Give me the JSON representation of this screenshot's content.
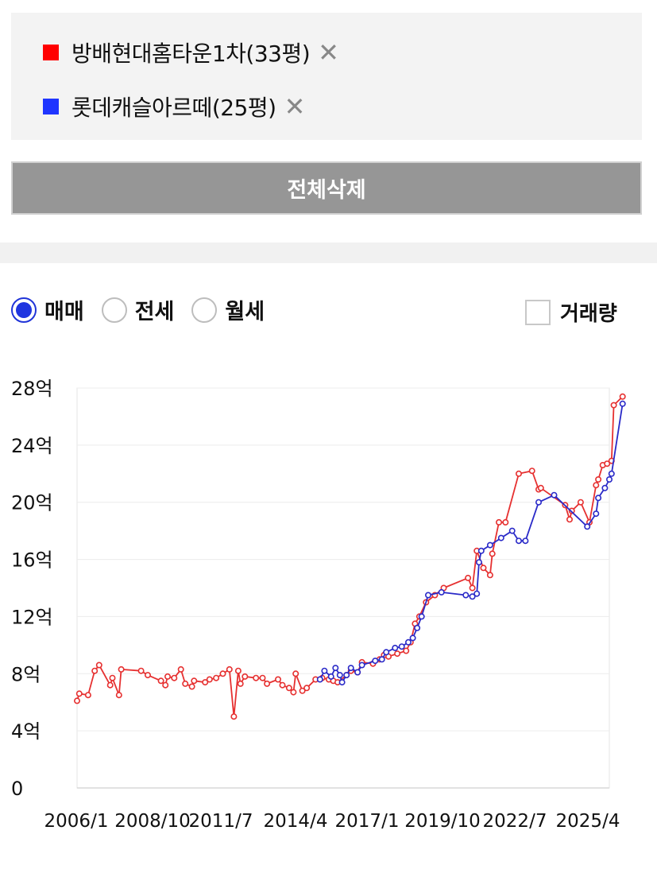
{
  "compare": {
    "items": [
      {
        "label": "방배현대홈타운1차(33평)",
        "color": "#ff0000",
        "remove_icon": "close-icon"
      },
      {
        "label": "롯데캐슬아르떼(25평)",
        "color": "#1f35ff",
        "remove_icon": "close-icon"
      }
    ],
    "delete_all_label": "전체삭제"
  },
  "trade_types": [
    {
      "label": "매매",
      "selected": true
    },
    {
      "label": "전세",
      "selected": false
    },
    {
      "label": "월세",
      "selected": false
    }
  ],
  "volume_toggle": {
    "label": "거래량",
    "checked": false
  },
  "chart_data": {
    "type": "line",
    "title": "",
    "xlabel": "",
    "ylabel": "",
    "x_ticks": [
      "2006/1",
      "2008/10",
      "2011/7",
      "2014/4",
      "2017/1",
      "2019/10",
      "2022/7",
      "2025/4"
    ],
    "y_ticks": [
      "0",
      "4억",
      "8억",
      "12억",
      "16억",
      "20억",
      "24억",
      "28억"
    ],
    "y_unit": "억",
    "ylim": [
      0,
      28
    ],
    "xlim": [
      "2006-01",
      "2026-02"
    ],
    "grid": true,
    "marker": "circle",
    "series": [
      {
        "name": "방배현대홈타운1차(33평)",
        "color": "#e63030",
        "points": [
          [
            "2006-01",
            6.1
          ],
          [
            "2006-02",
            6.6
          ],
          [
            "2006-06",
            6.5
          ],
          [
            "2006-09",
            8.2
          ],
          [
            "2006-11",
            8.6
          ],
          [
            "2007-04",
            7.2
          ],
          [
            "2007-05",
            7.7
          ],
          [
            "2007-08",
            6.5
          ],
          [
            "2007-09",
            8.3
          ],
          [
            "2008-06",
            8.2
          ],
          [
            "2008-09",
            7.9
          ],
          [
            "2009-03",
            7.5
          ],
          [
            "2009-05",
            7.2
          ],
          [
            "2009-06",
            7.8
          ],
          [
            "2009-09",
            7.7
          ],
          [
            "2009-12",
            8.3
          ],
          [
            "2010-02",
            7.3
          ],
          [
            "2010-05",
            7.1
          ],
          [
            "2010-06",
            7.5
          ],
          [
            "2010-11",
            7.4
          ],
          [
            "2011-01",
            7.6
          ],
          [
            "2011-04",
            7.7
          ],
          [
            "2011-07",
            8.0
          ],
          [
            "2011-10",
            8.3
          ],
          [
            "2011-12",
            5.0
          ],
          [
            "2012-02",
            8.2
          ],
          [
            "2012-03",
            7.3
          ],
          [
            "2012-05",
            7.8
          ],
          [
            "2012-10",
            7.7
          ],
          [
            "2013-01",
            7.7
          ],
          [
            "2013-03",
            7.3
          ],
          [
            "2013-08",
            7.6
          ],
          [
            "2013-10",
            7.2
          ],
          [
            "2014-01",
            7.0
          ],
          [
            "2014-03",
            6.7
          ],
          [
            "2014-04",
            8.0
          ],
          [
            "2014-07",
            6.8
          ],
          [
            "2014-09",
            7.0
          ],
          [
            "2015-01",
            7.6
          ],
          [
            "2015-04",
            7.7
          ],
          [
            "2015-07",
            7.6
          ],
          [
            "2015-09",
            7.5
          ],
          [
            "2015-11",
            7.4
          ],
          [
            "2016-03",
            7.9
          ],
          [
            "2016-05",
            8.2
          ],
          [
            "2016-08",
            8.1
          ],
          [
            "2016-10",
            8.8
          ],
          [
            "2017-03",
            8.7
          ],
          [
            "2017-06",
            9.0
          ],
          [
            "2017-08",
            9.3
          ],
          [
            "2017-10",
            9.2
          ],
          [
            "2018-02",
            9.4
          ],
          [
            "2018-06",
            9.6
          ],
          [
            "2018-08",
            10.2
          ],
          [
            "2018-10",
            11.5
          ],
          [
            "2018-12",
            12.0
          ],
          [
            "2019-03",
            13.0
          ],
          [
            "2019-07",
            13.5
          ],
          [
            "2019-11",
            14.0
          ],
          [
            "2020-10",
            14.7
          ],
          [
            "2020-12",
            14.0
          ],
          [
            "2021-02",
            16.6
          ],
          [
            "2021-05",
            15.4
          ],
          [
            "2021-08",
            14.9
          ],
          [
            "2021-09",
            16.4
          ],
          [
            "2021-12",
            18.6
          ],
          [
            "2022-03",
            18.6
          ],
          [
            "2022-09",
            22.0
          ],
          [
            "2023-03",
            22.2
          ],
          [
            "2023-06",
            20.9
          ],
          [
            "2023-07",
            21.0
          ],
          [
            "2024-06",
            19.8
          ],
          [
            "2024-08",
            18.8
          ],
          [
            "2024-09",
            19.4
          ],
          [
            "2025-01",
            20.0
          ],
          [
            "2025-05",
            18.6
          ],
          [
            "2025-08",
            21.2
          ],
          [
            "2025-09",
            21.6
          ],
          [
            "2025-11",
            22.6
          ],
          [
            "2026-01",
            22.7
          ],
          [
            "2026-03",
            22.9
          ],
          [
            "2026-04",
            26.8
          ],
          [
            "2026-08",
            27.4
          ]
        ]
      },
      {
        "name": "롯데캐슬아르떼(25평)",
        "color": "#2a2ac8",
        "points": [
          [
            "2015-03",
            7.6
          ],
          [
            "2015-05",
            8.2
          ],
          [
            "2015-08",
            7.8
          ],
          [
            "2015-10",
            8.4
          ],
          [
            "2015-12",
            7.9
          ],
          [
            "2016-01",
            7.4
          ],
          [
            "2016-03",
            7.9
          ],
          [
            "2016-05",
            8.4
          ],
          [
            "2016-08",
            8.1
          ],
          [
            "2016-10",
            8.6
          ],
          [
            "2017-04",
            8.9
          ],
          [
            "2017-07",
            9.0
          ],
          [
            "2017-09",
            9.5
          ],
          [
            "2018-01",
            9.8
          ],
          [
            "2018-04",
            9.9
          ],
          [
            "2018-07",
            10.2
          ],
          [
            "2018-09",
            10.5
          ],
          [
            "2018-11",
            11.2
          ],
          [
            "2019-01",
            12.0
          ],
          [
            "2019-04",
            13.5
          ],
          [
            "2019-10",
            13.7
          ],
          [
            "2020-09",
            13.5
          ],
          [
            "2020-12",
            13.4
          ],
          [
            "2021-02",
            13.6
          ],
          [
            "2021-03",
            15.8
          ],
          [
            "2021-04",
            16.6
          ],
          [
            "2021-08",
            17.0
          ],
          [
            "2022-01",
            17.5
          ],
          [
            "2022-06",
            18.0
          ],
          [
            "2022-09",
            17.3
          ],
          [
            "2022-12",
            17.3
          ],
          [
            "2023-06",
            20.0
          ],
          [
            "2024-01",
            20.5
          ],
          [
            "2025-04",
            18.3
          ],
          [
            "2025-08",
            19.2
          ],
          [
            "2025-09",
            20.3
          ],
          [
            "2025-12",
            21.0
          ],
          [
            "2026-02",
            21.6
          ],
          [
            "2026-03",
            22.0
          ],
          [
            "2026-08",
            26.9
          ]
        ]
      }
    ]
  }
}
